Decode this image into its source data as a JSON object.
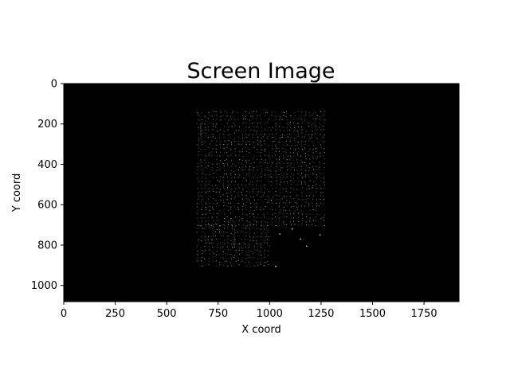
{
  "chart_data": {
    "type": "heatmap",
    "title": "Screen Image",
    "xlabel": "X coord",
    "ylabel": "Y coord",
    "xlim": [
      0,
      1920
    ],
    "ylim": [
      1080,
      0
    ],
    "y_inverted": true,
    "x_ticks": [
      0,
      250,
      500,
      750,
      1000,
      1250,
      1500,
      1750
    ],
    "y_ticks": [
      0,
      200,
      400,
      600,
      800,
      1000
    ],
    "background_color": "#000000",
    "point_color": "#d0d0d0",
    "grid": false,
    "regions": [
      {
        "name": "upper block",
        "x": [
          650,
          1275
        ],
        "y": [
          140,
          700
        ]
      },
      {
        "name": "lower-left block",
        "x": [
          650,
          1000
        ],
        "y": [
          700,
          915
        ]
      }
    ],
    "sparse_points": [
      {
        "x": 1050,
        "y": 745
      },
      {
        "x": 1110,
        "y": 720
      },
      {
        "x": 1180,
        "y": 805
      },
      {
        "x": 1245,
        "y": 750
      },
      {
        "x": 1150,
        "y": 770
      },
      {
        "x": 1030,
        "y": 905
      }
    ]
  }
}
